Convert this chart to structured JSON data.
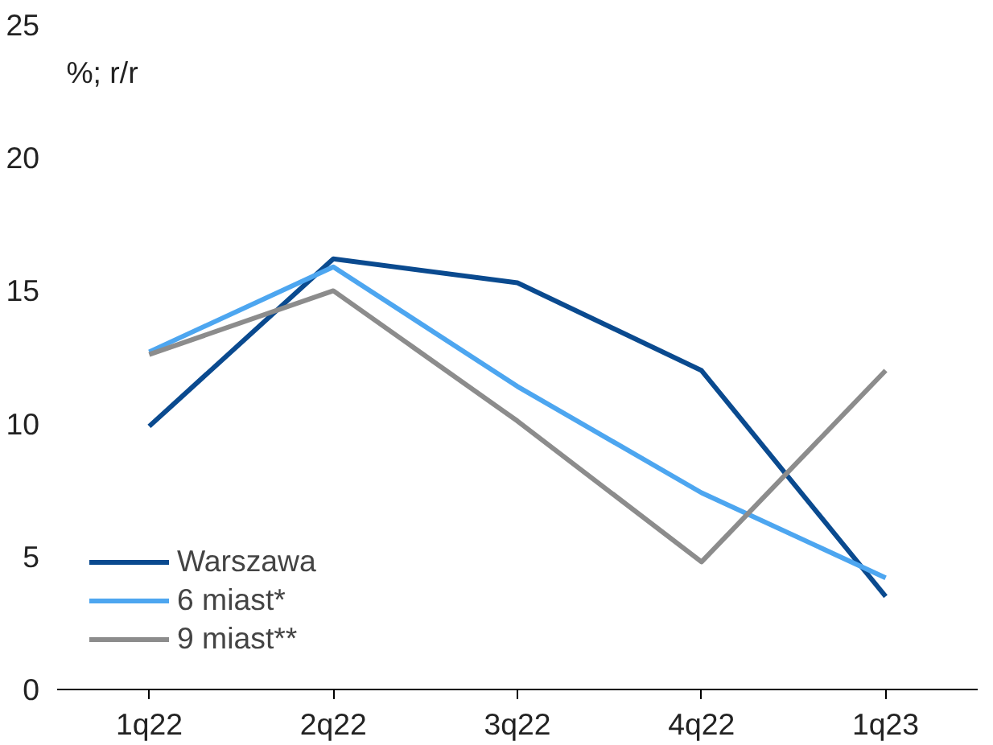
{
  "chart_data": {
    "type": "line",
    "ylabel": "%; r/r",
    "categories": [
      "1q22",
      "2q22",
      "3q22",
      "4q22",
      "1q23"
    ],
    "ylim": [
      0,
      25
    ],
    "yticks": [
      0,
      5,
      10,
      15,
      20,
      25
    ],
    "grid": false,
    "legend": "bottom left",
    "marker": "none",
    "line_style": "solid",
    "series": [
      {
        "name": "Warszawa",
        "color": "#0a4a8f",
        "values": [
          9.9,
          16.2,
          15.3,
          12.0,
          3.5
        ]
      },
      {
        "name": "6 miast*",
        "color": "#4da6f0",
        "values": [
          12.7,
          15.9,
          11.4,
          7.4,
          4.2
        ]
      },
      {
        "name": "9 miast**",
        "color": "#8c8c8c",
        "values": [
          12.6,
          15.0,
          10.1,
          4.8,
          12.0
        ]
      }
    ]
  }
}
